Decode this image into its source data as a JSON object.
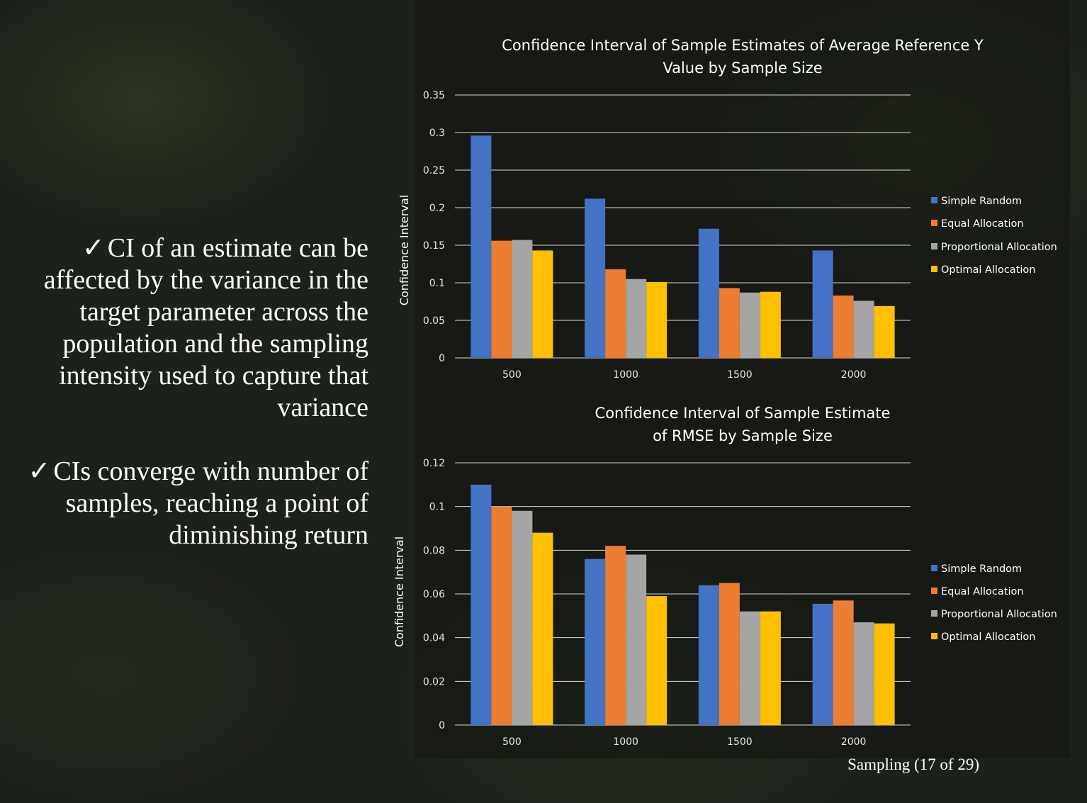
{
  "slide": {
    "bullets": [
      {
        "check": "✓",
        "text": "CI of an estimate can be affected by the variance in the target parameter across the population and the sampling intensity used to capture that variance"
      },
      {
        "check": "✓",
        "text": "CIs converge with number of samples, reaching a point of diminishing return"
      }
    ],
    "footer": "Sampling (17 of 29)"
  },
  "chart_data": [
    {
      "type": "bar",
      "title_lines": [
        "Confidence Interval of Sample Estimates of Average Reference Y",
        "Value by Sample Size"
      ],
      "ylabel": "Confidence Interval",
      "xlabel": "",
      "categories": [
        "500",
        "1000",
        "1500",
        "2000"
      ],
      "ylim": [
        0,
        0.35
      ],
      "yticks": [
        0,
        0.05,
        0.1,
        0.15,
        0.2,
        0.25,
        0.3,
        0.35
      ],
      "ytick_labels": [
        "0",
        "0.05",
        "0.1",
        "0.15",
        "0.2",
        "0.25",
        "0.3",
        "0.35"
      ],
      "grid": true,
      "legend": "right",
      "series": [
        {
          "name": "Simple Random",
          "color": "#4472c4",
          "values": [
            0.296,
            0.212,
            0.172,
            0.143
          ]
        },
        {
          "name": "Equal Allocation",
          "color": "#ed7d31",
          "values": [
            0.156,
            0.118,
            0.093,
            0.083
          ]
        },
        {
          "name": "Proportional Allocation",
          "color": "#a5a5a5",
          "values": [
            0.157,
            0.105,
            0.087,
            0.076
          ]
        },
        {
          "name": "Optimal Allocation",
          "color": "#ffc000",
          "values": [
            0.143,
            0.101,
            0.088,
            0.069
          ]
        }
      ]
    },
    {
      "type": "bar",
      "title_lines": [
        "Confidence Interval of Sample Estimate",
        "of RMSE by Sample Size"
      ],
      "ylabel": "Confidence Interval",
      "xlabel": "",
      "categories": [
        "500",
        "1000",
        "1500",
        "2000"
      ],
      "ylim": [
        0,
        0.12
      ],
      "yticks": [
        0,
        0.02,
        0.04,
        0.06,
        0.08,
        0.1,
        0.12
      ],
      "ytick_labels": [
        "0",
        "0.02",
        "0.04",
        "0.06",
        "0.08",
        "0.1",
        "0.12"
      ],
      "grid": true,
      "legend": "right",
      "series": [
        {
          "name": "Simple Random",
          "color": "#4472c4",
          "values": [
            0.11,
            0.076,
            0.064,
            0.0555
          ]
        },
        {
          "name": "Equal Allocation",
          "color": "#ed7d31",
          "values": [
            0.1,
            0.082,
            0.065,
            0.057
          ]
        },
        {
          "name": "Proportional Allocation",
          "color": "#a5a5a5",
          "values": [
            0.098,
            0.078,
            0.052,
            0.047
          ]
        },
        {
          "name": "Optimal Allocation",
          "color": "#ffc000",
          "values": [
            0.088,
            0.059,
            0.052,
            0.0465
          ]
        }
      ]
    }
  ]
}
